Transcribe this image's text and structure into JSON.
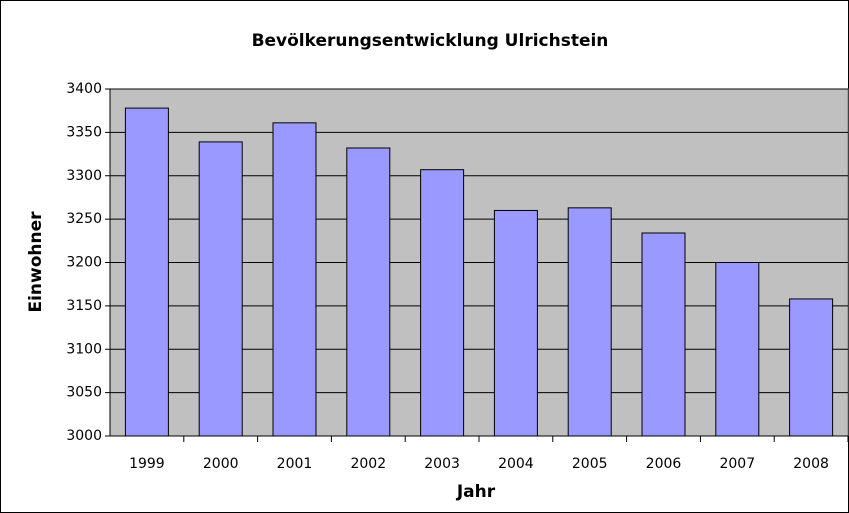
{
  "chart_data": {
    "type": "bar",
    "title": "Bevölkerungsentwicklung Ulrichstein",
    "x_label": "Jahr",
    "y_label": "Einwohner",
    "categories": [
      "1999",
      "2000",
      "2001",
      "2002",
      "2003",
      "2004",
      "2005",
      "2006",
      "2007",
      "2008"
    ],
    "values": [
      3378,
      3339,
      3361,
      3332,
      3307,
      3260,
      3263,
      3234,
      3200,
      3158
    ],
    "color": "#9999ff",
    "ylim": [
      3000,
      3400
    ],
    "yticks": [
      3000,
      3050,
      3100,
      3150,
      3200,
      3250,
      3300,
      3350,
      3400
    ],
    "grid": true
  }
}
